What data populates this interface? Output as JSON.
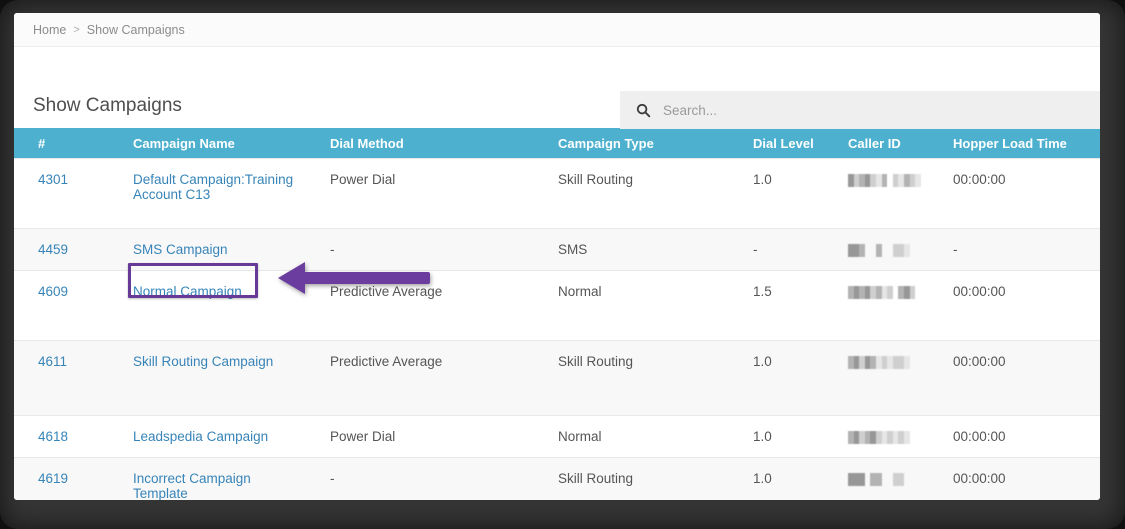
{
  "breadcrumb": {
    "items": [
      "Home",
      "Show Campaigns"
    ],
    "separator": ">"
  },
  "page": {
    "title": "Show Campaigns"
  },
  "search": {
    "placeholder": "Search...",
    "value": ""
  },
  "table": {
    "columns": [
      "#",
      "Campaign Name",
      "Dial Method",
      "Campaign Type",
      "Dial Level",
      "Caller ID",
      "Hopper Load Time"
    ],
    "rows": [
      {
        "id": "4301",
        "name": "Default Campaign:Training Account C13",
        "dial_method": "Power Dial",
        "campaign_type": "Skill Routing",
        "dial_level": "1.0",
        "caller_id_redacted": true,
        "caller_id_pixels": [
          4,
          2,
          3,
          4,
          2,
          1,
          3,
          0,
          2,
          1,
          3,
          2,
          1
        ],
        "hopper_load_time": "00:00:00"
      },
      {
        "id": "4459",
        "name": "SMS Campaign",
        "dial_method": "-",
        "campaign_type": "SMS",
        "dial_level": "-",
        "caller_id_redacted": true,
        "caller_id_pixels": [
          4,
          4,
          3,
          0,
          0,
          3,
          0,
          0,
          2,
          2,
          1,
          0,
          0
        ],
        "hopper_load_time": "-"
      },
      {
        "id": "4609",
        "name": "Normal Campaign",
        "dial_method": "Predictive Average",
        "campaign_type": "Normal",
        "dial_level": "1.5",
        "caller_id_redacted": true,
        "caller_id_pixels": [
          3,
          4,
          3,
          4,
          2,
          3,
          1,
          2,
          0,
          3,
          4,
          2,
          0
        ],
        "hopper_load_time": "00:00:00"
      },
      {
        "id": "4611",
        "name": "Skill Routing Campaign",
        "dial_method": "Predictive Average",
        "campaign_type": "Skill Routing",
        "dial_level": "1.0",
        "caller_id_redacted": true,
        "caller_id_pixels": [
          3,
          4,
          2,
          4,
          3,
          1,
          2,
          1,
          2,
          2,
          1,
          0,
          0
        ],
        "hopper_load_time": "00:00:00"
      },
      {
        "id": "4618",
        "name": "Leadspedia Campaign",
        "dial_method": "Power Dial",
        "campaign_type": "Normal",
        "dial_level": "1.0",
        "caller_id_redacted": true,
        "caller_id_pixels": [
          3,
          4,
          2,
          3,
          4,
          2,
          1,
          2,
          1,
          2,
          1,
          0,
          0
        ],
        "hopper_load_time": "00:00:00"
      },
      {
        "id": "4619",
        "name": "Incorrect Campaign Template",
        "dial_method": "-",
        "campaign_type": "Skill Routing",
        "dial_level": "1.0",
        "caller_id_redacted": true,
        "caller_id_pixels": [
          4,
          4,
          4,
          0,
          3,
          3,
          0,
          0,
          2,
          2,
          0,
          0,
          0
        ],
        "hopper_load_time": "00:00:00"
      }
    ]
  },
  "annotation": {
    "highlighted_campaign": "Normal Campaign",
    "highlighted_row_id": "4609",
    "color": "#6a3d9e"
  },
  "colors": {
    "table_header_bg": "#4cb0ce",
    "link": "#3784b8",
    "row_stripe": "#f8f8f8",
    "annotation_purple": "#6a3d9e"
  }
}
